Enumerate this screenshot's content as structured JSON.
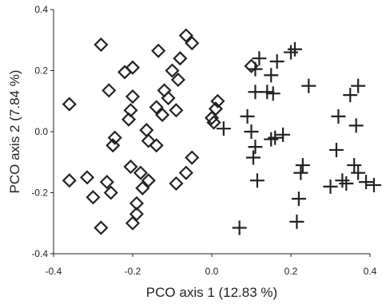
{
  "chart_data": {
    "type": "scatter",
    "title": "",
    "xlabel": "PCO axis 1 (12.83 %)",
    "ylabel": "PCO axis 2 (7.84 %)",
    "xlim": [
      -0.4,
      0.4
    ],
    "ylim": [
      -0.4,
      0.4
    ],
    "xticks": [
      "-0.4",
      "-0.2",
      "0.0",
      "0.2",
      "0.4"
    ],
    "yticks": [
      "-0.4",
      "-0.2",
      "0.0",
      "0.2",
      "0.4"
    ],
    "grid": false,
    "legend": "none",
    "series": [
      {
        "marker": "diamond",
        "color": "#222222",
        "points": [
          [
            -0.28,
            0.285
          ],
          [
            -0.22,
            0.195
          ],
          [
            -0.2,
            0.21
          ],
          [
            -0.135,
            0.265
          ],
          [
            -0.065,
            0.315
          ],
          [
            -0.05,
            0.29
          ],
          [
            -0.08,
            0.24
          ],
          [
            -0.1,
            0.2
          ],
          [
            -0.085,
            0.17
          ],
          [
            -0.26,
            0.135
          ],
          [
            -0.36,
            0.09
          ],
          [
            -0.12,
            0.135
          ],
          [
            -0.2,
            0.115
          ],
          [
            -0.205,
            0.07
          ],
          [
            -0.14,
            0.08
          ],
          [
            -0.11,
            0.11
          ],
          [
            -0.125,
            0.055
          ],
          [
            -0.21,
            0.04
          ],
          [
            -0.09,
            0.07
          ],
          [
            -0.245,
            -0.02
          ],
          [
            -0.25,
            -0.045
          ],
          [
            -0.165,
            0.005
          ],
          [
            -0.16,
            -0.03
          ],
          [
            -0.14,
            -0.045
          ],
          [
            -0.05,
            -0.085
          ],
          [
            -0.205,
            -0.115
          ],
          [
            -0.18,
            -0.135
          ],
          [
            -0.16,
            -0.16
          ],
          [
            -0.065,
            -0.135
          ],
          [
            -0.09,
            -0.17
          ],
          [
            -0.315,
            -0.15
          ],
          [
            -0.265,
            -0.165
          ],
          [
            -0.36,
            -0.16
          ],
          [
            -0.3,
            -0.215
          ],
          [
            -0.255,
            -0.2
          ],
          [
            -0.175,
            -0.185
          ],
          [
            -0.19,
            -0.235
          ],
          [
            -0.19,
            -0.27
          ],
          [
            -0.2,
            -0.3
          ],
          [
            -0.28,
            -0.315
          ],
          [
            0.1,
            0.215
          ],
          [
            0.015,
            0.1
          ],
          [
            0.0,
            0.045
          ],
          [
            0.01,
            0.075
          ],
          [
            0.005,
            0.03
          ]
        ]
      },
      {
        "marker": "plus",
        "color": "#222222",
        "points": [
          [
            0.21,
            0.27
          ],
          [
            0.2,
            0.26
          ],
          [
            0.165,
            0.23
          ],
          [
            0.12,
            0.24
          ],
          [
            0.11,
            0.205
          ],
          [
            0.15,
            0.185
          ],
          [
            0.245,
            0.15
          ],
          [
            0.37,
            0.15
          ],
          [
            0.35,
            0.12
          ],
          [
            0.11,
            0.13
          ],
          [
            0.14,
            0.13
          ],
          [
            0.155,
            0.125
          ],
          [
            0.09,
            0.05
          ],
          [
            0.32,
            0.05
          ],
          [
            0.365,
            0.02
          ],
          [
            0.1,
            0.0
          ],
          [
            0.16,
            -0.02
          ],
          [
            0.15,
            -0.025
          ],
          [
            0.18,
            -0.01
          ],
          [
            0.03,
            0.01
          ],
          [
            0.11,
            -0.05
          ],
          [
            0.315,
            -0.06
          ],
          [
            0.105,
            -0.085
          ],
          [
            0.23,
            -0.11
          ],
          [
            0.225,
            -0.135
          ],
          [
            0.36,
            -0.11
          ],
          [
            0.37,
            -0.135
          ],
          [
            0.115,
            -0.16
          ],
          [
            0.33,
            -0.16
          ],
          [
            0.34,
            -0.17
          ],
          [
            0.3,
            -0.18
          ],
          [
            0.39,
            -0.165
          ],
          [
            0.41,
            -0.175
          ],
          [
            0.22,
            -0.22
          ],
          [
            0.215,
            -0.295
          ],
          [
            0.07,
            -0.315
          ]
        ]
      }
    ]
  }
}
